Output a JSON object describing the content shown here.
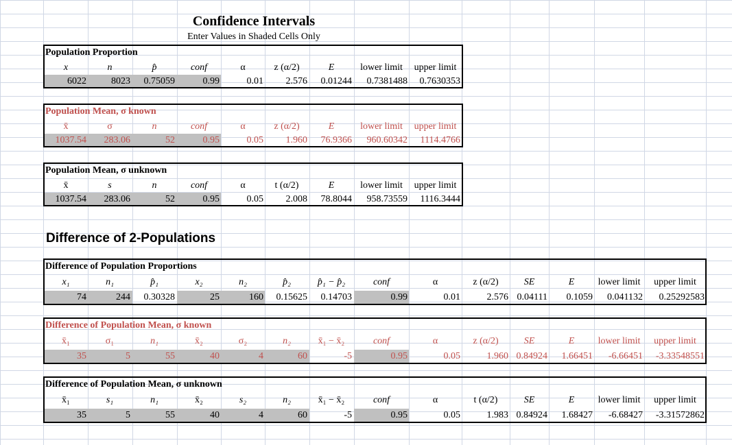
{
  "title": "Confidence Intervals",
  "subtitle": "Enter Values in Shaded Cells Only",
  "diff_title": "Difference of 2-Populations",
  "colors": {
    "red": "#c0504d",
    "shade": "#c0c0c0",
    "grid": "#d0d7e5"
  },
  "s1": {
    "title": "Population Proportion",
    "headers": [
      "x",
      "n",
      "p̂",
      "conf",
      "α",
      "z (α/2)",
      "E",
      "lower limit",
      "upper limit"
    ],
    "values": [
      "6022",
      "8023",
      "0.75059",
      "0.99",
      "0.01",
      "2.576",
      "0.01244",
      "0.7381488",
      "0.7630353"
    ]
  },
  "s2": {
    "title": "Population Mean, σ known",
    "headers": [
      "x̄",
      "σ",
      "n",
      "conf",
      "α",
      "z (α/2)",
      "E",
      "lower limit",
      "upper limit"
    ],
    "values": [
      "1037.54",
      "283.06",
      "52",
      "0.95",
      "0.05",
      "1.960",
      "76.9366",
      "960.60342",
      "1114.4766"
    ]
  },
  "s3": {
    "title": "Population Mean, σ unknown",
    "headers": [
      "x̄",
      "s",
      "n",
      "conf",
      "α",
      "t (α/2)",
      "E",
      "lower limit",
      "upper limit"
    ],
    "values": [
      "1037.54",
      "283.06",
      "52",
      "0.95",
      "0.05",
      "2.008",
      "78.8044",
      "958.73559",
      "1116.3444"
    ]
  },
  "s4": {
    "title": "Difference of Population Proportions",
    "headers": [
      "x₁",
      "n₁",
      "p̂₁",
      "x₂",
      "n₂",
      "p̂₂",
      "p̂₁ − p̂₂",
      "conf",
      "α",
      "z (α/2)",
      "SE",
      "E",
      "lower limit",
      "upper limit"
    ],
    "values": [
      "74",
      "244",
      "0.30328",
      "25",
      "160",
      "0.15625",
      "0.14703",
      "0.99",
      "0.01",
      "2.576",
      "0.04111",
      "0.1059",
      "0.041132",
      "0.25292583"
    ]
  },
  "s5": {
    "title": "Difference of Population Mean, σ known",
    "headers": [
      "x̄₁",
      "σ₁",
      "n₁",
      "x̄₂",
      "σ₂",
      "n₂",
      "x̄₁ − x̄₂",
      "conf",
      "α",
      "z (α/2)",
      "SE",
      "E",
      "lower limit",
      "upper limit"
    ],
    "values": [
      "35",
      "5",
      "55",
      "40",
      "4",
      "60",
      "-5",
      "0.95",
      "0.05",
      "1.960",
      "0.84924",
      "1.66451",
      "-6.66451",
      "-3.33548551"
    ]
  },
  "s6": {
    "title": "Difference of Population Mean, σ unknown",
    "headers": [
      "x̄₁",
      "s₁",
      "n₁",
      "x̄₂",
      "s₂",
      "n₂",
      "x̄₁ − x̄₂",
      "conf",
      "α",
      "t (α/2)",
      "SE",
      "E",
      "lower limit",
      "upper limit"
    ],
    "values": [
      "35",
      "5",
      "55",
      "40",
      "4",
      "60",
      "-5",
      "0.95",
      "0.05",
      "1.983",
      "0.84924",
      "1.68427",
      "-6.68427",
      "-3.31572862"
    ]
  }
}
